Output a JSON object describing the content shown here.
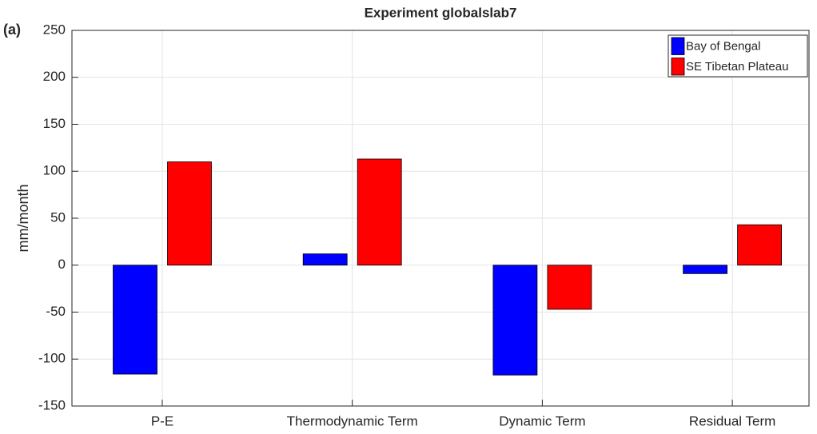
{
  "chart_data": {
    "type": "bar",
    "title": "Experiment globalslab7",
    "annotation": "(a)",
    "ylabel": "mm/month",
    "categories": [
      "P-E",
      "Thermodynamic Term",
      "Dynamic Term",
      "Residual Term"
    ],
    "series": [
      {
        "name": "Bay of Bengal",
        "color": "#0000ff",
        "values": [
          -116,
          12,
          -117,
          -9
        ]
      },
      {
        "name": "SE Tibetan Plateau",
        "color": "#ff0000",
        "values": [
          110,
          113,
          -47,
          43
        ]
      }
    ],
    "ylim": [
      -150,
      250
    ],
    "yticks": [
      -150,
      -100,
      -50,
      0,
      50,
      100,
      150,
      200,
      250
    ],
    "grid": true,
    "legend": "upper right"
  }
}
